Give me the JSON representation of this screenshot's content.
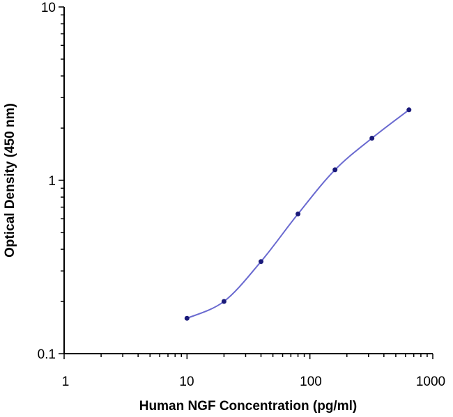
{
  "chart_data": {
    "type": "line",
    "title": "",
    "xlabel": "Human NGF Concentration (pg/ml)",
    "ylabel": "Optical Density (450 nm)",
    "xscale": "log",
    "yscale": "log",
    "xlim": [
      1,
      1000
    ],
    "ylim": [
      0.1,
      10
    ],
    "x_tick_labels": [
      "1",
      "10",
      "100",
      "1000"
    ],
    "y_tick_labels": [
      "0.1",
      "1",
      "10"
    ],
    "grid": false,
    "legend": "none",
    "line_color": "#6a6ad0",
    "marker_color": "#1a1a7a",
    "series": [
      {
        "x": [
          10,
          20,
          40,
          80,
          160,
          320,
          640
        ],
        "y": [
          0.16,
          0.2,
          0.34,
          0.64,
          1.15,
          1.75,
          2.55
        ]
      }
    ]
  }
}
